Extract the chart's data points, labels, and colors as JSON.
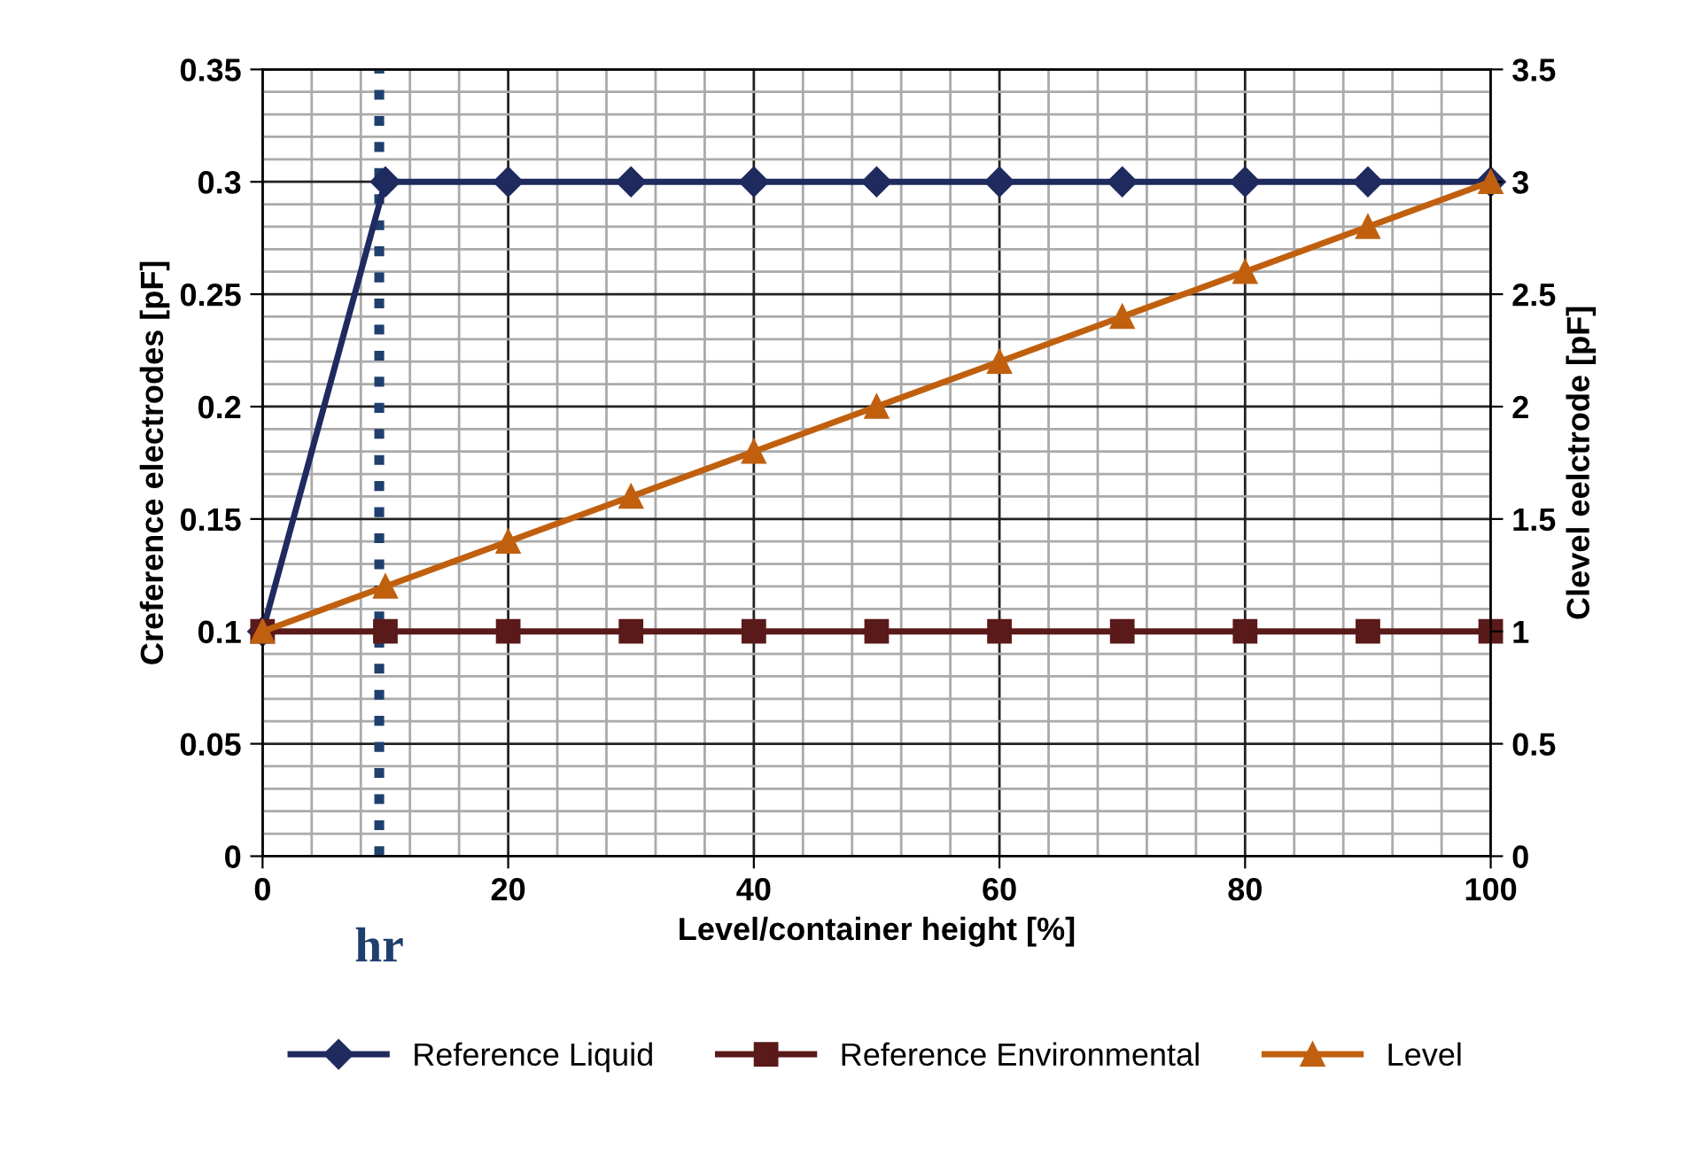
{
  "chart_data": {
    "type": "line",
    "x": [
      0,
      10,
      20,
      30,
      40,
      50,
      60,
      70,
      80,
      90,
      100
    ],
    "xlabel": "Level/container height [%]",
    "ylabel": "Creference electrodes [pF]",
    "y2label": "Clevel eelctrode [pF]",
    "xlim": [
      0,
      100
    ],
    "xticks": [
      0,
      20,
      40,
      60,
      80,
      100
    ],
    "ylim": [
      0,
      0.35
    ],
    "yticks": [
      0,
      0.05,
      0.1,
      0.15,
      0.2,
      0.25,
      0.3,
      0.35
    ],
    "y2lim": [
      0,
      3.5
    ],
    "y2ticks": [
      0,
      0.5,
      1,
      1.5,
      2,
      2.5,
      3,
      3.5
    ],
    "series": [
      {
        "name": "Reference Liquid",
        "color": "#1f2a5e",
        "marker": "diamond",
        "values": [
          0.1,
          0.3,
          0.3,
          0.3,
          0.3,
          0.3,
          0.3,
          0.3,
          0.3,
          0.3,
          0.3
        ]
      },
      {
        "name": "Reference Environmental",
        "color": "#5a1a1a",
        "marker": "square",
        "values": [
          0.1,
          0.1,
          0.1,
          0.1,
          0.1,
          0.1,
          0.1,
          0.1,
          0.1,
          0.1,
          0.1
        ]
      },
      {
        "name": "Level",
        "color": "#c0600f",
        "marker": "triangle",
        "axis": "y2",
        "values": [
          1,
          1.2,
          1.4,
          1.6,
          1.8,
          2,
          2.2,
          2.4,
          2.6,
          2.8,
          3
        ]
      }
    ],
    "ref_lines": [
      {
        "axis": "x",
        "value": 9.5,
        "label": "hr",
        "color": "#1f3f6e",
        "line_style": "dotted"
      }
    ],
    "grid": true,
    "legend": "bottom"
  }
}
